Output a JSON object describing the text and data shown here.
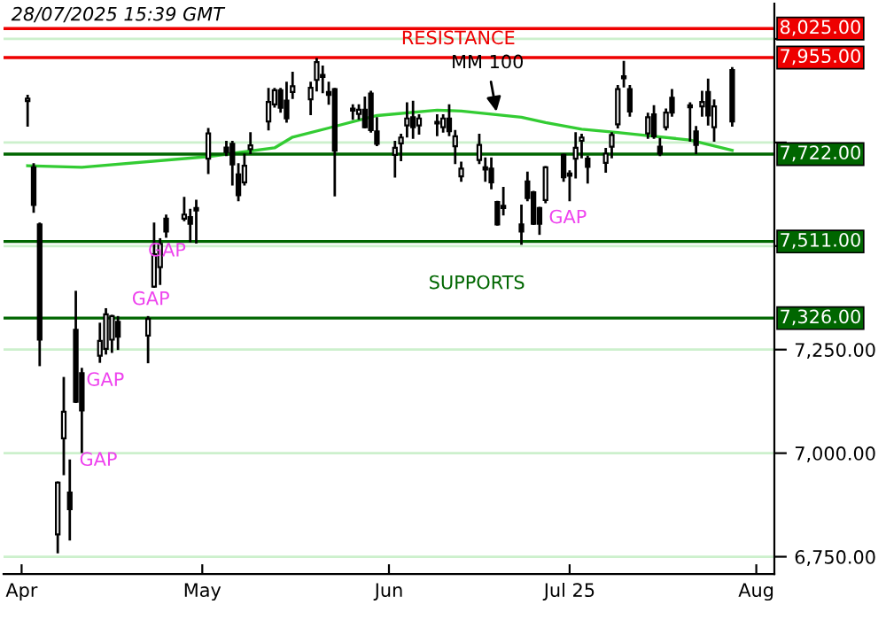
{
  "chart_data": {
    "type": "candlestick",
    "x": [
      "2025-04-02",
      "2025-04-03",
      "2025-04-04",
      "2025-04-07",
      "2025-04-08",
      "2025-04-09",
      "2025-04-10",
      "2025-04-11",
      "2025-04-14",
      "2025-04-15",
      "2025-04-16",
      "2025-04-17",
      "2025-04-22",
      "2025-04-23",
      "2025-04-24",
      "2025-04-25",
      "2025-04-28",
      "2025-04-29",
      "2025-04-30",
      "2025-05-02",
      "2025-05-05",
      "2025-05-06",
      "2025-05-07",
      "2025-05-08",
      "2025-05-09",
      "2025-05-12",
      "2025-05-13",
      "2025-05-14",
      "2025-05-15",
      "2025-05-16",
      "2025-05-19",
      "2025-05-20",
      "2025-05-21",
      "2025-05-22",
      "2025-05-23",
      "2025-05-26",
      "2025-05-27",
      "2025-05-28",
      "2025-05-29",
      "2025-05-30",
      "2025-06-02",
      "2025-06-03",
      "2025-06-04",
      "2025-06-05",
      "2025-06-06",
      "2025-06-09",
      "2025-06-10",
      "2025-06-11",
      "2025-06-12",
      "2025-06-13",
      "2025-06-16",
      "2025-06-17",
      "2025-06-18",
      "2025-06-19",
      "2025-06-20",
      "2025-06-23",
      "2025-06-24",
      "2025-06-25",
      "2025-06-26",
      "2025-06-27",
      "2025-06-30",
      "2025-07-01",
      "2025-07-02",
      "2025-07-03",
      "2025-07-04",
      "2025-07-07",
      "2025-07-08",
      "2025-07-09",
      "2025-07-10",
      "2025-07-11",
      "2025-07-14",
      "2025-07-15",
      "2025-07-16",
      "2025-07-17",
      "2025-07-18",
      "2025-07-21",
      "2025-07-22",
      "2025-07-23",
      "2025-07-24",
      "2025-07-25",
      "2025-07-28"
    ],
    "ohlc": [
      [
        7850,
        7862,
        7791,
        7856
      ],
      [
        7690,
        7697,
        7583,
        7599
      ],
      [
        7552,
        7554,
        7213,
        7274
      ],
      [
        6804,
        6929,
        6761,
        6929
      ],
      [
        7036,
        7181,
        6950,
        7100
      ],
      [
        6905,
        6982,
        6792,
        6865
      ],
      [
        7298,
        7389,
        7124,
        7124
      ],
      [
        7193,
        7203,
        7003,
        7103
      ],
      [
        7235,
        7312,
        7221,
        7271
      ],
      [
        7252,
        7347,
        7241,
        7335
      ],
      [
        7274,
        7331,
        7245,
        7331
      ],
      [
        7317,
        7328,
        7252,
        7281
      ],
      [
        7284,
        7328,
        7220,
        7324
      ],
      [
        7402,
        7554,
        7402,
        7480
      ],
      [
        7449,
        7516,
        7409,
        7505
      ],
      [
        7566,
        7573,
        7523,
        7535
      ],
      [
        7566,
        7616,
        7563,
        7576
      ],
      [
        7570,
        7587,
        7512,
        7554
      ],
      [
        7592,
        7609,
        7509,
        7586
      ],
      [
        7711,
        7782,
        7677,
        7772
      ],
      [
        7738,
        7751,
        7720,
        7727
      ],
      [
        7747,
        7751,
        7649,
        7697
      ],
      [
        7673,
        7697,
        7611,
        7623
      ],
      [
        7654,
        7720,
        7649,
        7694
      ],
      [
        7734,
        7772,
        7725,
        7743
      ],
      [
        7801,
        7879,
        7782,
        7848
      ],
      [
        7842,
        7879,
        7837,
        7876
      ],
      [
        7876,
        7879,
        7825,
        7834
      ],
      [
        7851,
        7894,
        7801,
        7808
      ],
      [
        7872,
        7918,
        7858,
        7886
      ],
      [
        7854,
        7894,
        7819,
        7882
      ],
      [
        7901,
        7951,
        7876,
        7944
      ],
      [
        7913,
        7933,
        7872,
        7908
      ],
      [
        7872,
        7894,
        7844,
        7865
      ],
      [
        7879,
        7879,
        7623,
        7730
      ],
      [
        7827,
        7839,
        7808,
        7832
      ],
      [
        7819,
        7839,
        7808,
        7829
      ],
      [
        7829,
        7858,
        7787,
        7787
      ],
      [
        7868,
        7872,
        7777,
        7780
      ],
      [
        7777,
        7808,
        7744,
        7747
      ],
      [
        7720,
        7751,
        7668,
        7737
      ],
      [
        7748,
        7768,
        7708,
        7762
      ],
      [
        7791,
        7844,
        7765,
        7808
      ],
      [
        7811,
        7848,
        7762,
        7787
      ],
      [
        7791,
        7815,
        7772,
        7808
      ],
      [
        7800,
        7815,
        7768,
        7796
      ],
      [
        7787,
        7815,
        7777,
        7808
      ],
      [
        7808,
        7839,
        7768,
        7777
      ],
      [
        7741,
        7777,
        7701,
        7765
      ],
      [
        7668,
        7701,
        7658,
        7687
      ],
      [
        7708,
        7768,
        7701,
        7744
      ],
      [
        7690,
        7711,
        7658,
        7685
      ],
      [
        7687,
        7711,
        7640,
        7654
      ],
      [
        7606,
        7606,
        7552,
        7552
      ],
      [
        7597,
        7640,
        7577,
        7592
      ],
      [
        7552,
        7597,
        7506,
        7535
      ],
      [
        7656,
        7677,
        7611,
        7616
      ],
      [
        7630,
        7630,
        7554,
        7554
      ],
      [
        7592,
        7592,
        7530,
        7554
      ],
      [
        7611,
        7690,
        7606,
        7690
      ],
      [
        7720,
        7720,
        7658,
        7666
      ],
      [
        7675,
        7680,
        7611,
        7670
      ],
      [
        7711,
        7772,
        7666,
        7737
      ],
      [
        7754,
        7768,
        7715,
        7762
      ],
      [
        7711,
        7715,
        7654,
        7691
      ],
      [
        7701,
        7734,
        7680,
        7723
      ],
      [
        7740,
        7772,
        7715,
        7768
      ],
      [
        7794,
        7886,
        7787,
        7879
      ],
      [
        7910,
        7944,
        7886,
        7905
      ],
      [
        7879,
        7886,
        7815,
        7825
      ],
      [
        7772,
        7819,
        7762,
        7811
      ],
      [
        7818,
        7837,
        7762,
        7765
      ],
      [
        7740,
        7758,
        7720,
        7723
      ],
      [
        7787,
        7829,
        7782,
        7822
      ],
      [
        7858,
        7876,
        7815,
        7822
      ],
      [
        7840,
        7844,
        7755,
        7835
      ],
      [
        7777,
        7787,
        7725,
        7744
      ],
      [
        7837,
        7872,
        7815,
        7848
      ],
      [
        7872,
        7901,
        7794,
        7815
      ],
      [
        7787,
        7851,
        7755,
        7837
      ],
      [
        7925,
        7929,
        7791,
        7801
      ]
    ],
    "series": [
      {
        "type": "line",
        "color": "#33cc33",
        "x": [
          "2025-04-02",
          "2025-04-11",
          "2025-05-02",
          "2025-05-13",
          "2025-05-16",
          "2025-05-22",
          "2025-05-30",
          "2025-06-09",
          "2025-06-13",
          "2025-06-23",
          "2025-06-27",
          "2025-07-03",
          "2025-07-09",
          "2025-07-15",
          "2025-07-21",
          "2025-07-28"
        ],
        "values": [
          7694,
          7690,
          7716,
          7737,
          7763,
          7785,
          7815,
          7828,
          7826,
          7811,
          7798,
          7782,
          7774,
          7765,
          7756,
          7731
        ]
      }
    ],
    "xlim": [
      "2025-03-29",
      "2025-08-04"
    ],
    "xticks": [
      {
        "value": "2025-04-01",
        "label": "Apr"
      },
      {
        "value": "2025-05-01",
        "label": "May"
      },
      {
        "value": "2025-06-01",
        "label": "Jun"
      },
      {
        "value": "2025-07-01",
        "label": "Jul 25"
      },
      {
        "value": "2025-08-01",
        "label": "Aug"
      }
    ],
    "ylim": [
      6708,
      8085
    ],
    "yticks": [
      {
        "value": 6750,
        "label": "6,750.00"
      },
      {
        "value": 7000,
        "label": "7,000.00"
      },
      {
        "value": 7250,
        "label": "7,250.00"
      },
      {
        "value": 7500,
        "label": null
      },
      {
        "value": 7750,
        "label": null
      },
      {
        "value": 8000,
        "label": null
      }
    ],
    "grid": "y",
    "ref_lines": [
      {
        "axis": "y",
        "value": 8025,
        "label": "8,025.00",
        "color": "#ee0000"
      },
      {
        "axis": "y",
        "value": 7955,
        "label": "7,955.00",
        "color": "#ee0000"
      },
      {
        "axis": "y",
        "value": 7722,
        "label": "7,722.00",
        "color": "#006600"
      },
      {
        "axis": "y",
        "value": 7511,
        "label": "7,511.00",
        "color": "#006600"
      },
      {
        "axis": "y",
        "value": 7326,
        "label": "7,326.00",
        "color": "#006600"
      }
    ],
    "annotations": [
      "28/07/2025 15:39 GMT",
      "RESISTANCE",
      "SUPPORTS",
      "GAP",
      "GAP",
      "GAP",
      "GAP",
      "GAP",
      {
        "text": "MM 100",
        "x": "2025-06-19",
        "y": 7813
      }
    ]
  }
}
